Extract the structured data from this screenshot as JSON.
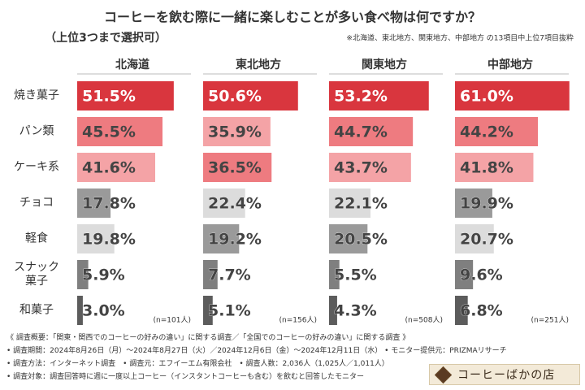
{
  "header": {
    "title": "コーヒーを飲む際に一緒に楽しむことが多い食べ物は何ですか？",
    "subtitle": "（上位3つまで選択可）",
    "note": "※北海道、東北地方、関東地方、中部地方 の13項目中上位7項目抜粋"
  },
  "chart_data": {
    "type": "bar",
    "orientation": "horizontal",
    "categories": [
      "焼き菓子",
      "パン類",
      "ケーキ系",
      "チョコ",
      "軽食",
      "スナック\n菓子",
      "和菓子"
    ],
    "xlim": [
      0,
      65
    ],
    "series": [
      {
        "name": "北海道",
        "note": "(n=101人)",
        "values": [
          51.5,
          45.5,
          41.6,
          17.8,
          19.8,
          5.9,
          3.0
        ],
        "value_labels": [
          "51.5%",
          "45.5%",
          "41.6%",
          "17.8%",
          "19.8%",
          "5.9%",
          "3.0%"
        ],
        "colors": [
          "#d9363e",
          "#ee7b80",
          "#f4a3a6",
          "#9a9a9a",
          "#dcdcdc",
          "#7f7f7f",
          "#5c5c5c"
        ]
      },
      {
        "name": "東北地方",
        "note": "(n=156人)",
        "values": [
          50.6,
          35.9,
          36.5,
          22.4,
          19.2,
          7.7,
          5.1
        ],
        "value_labels": [
          "50.6%",
          "35.9%",
          "36.5%",
          "22.4%",
          "19.2%",
          "7.7%",
          "5.1%"
        ],
        "colors": [
          "#d9363e",
          "#f4a3a6",
          "#ee7b80",
          "#dcdcdc",
          "#9a9a9a",
          "#7f7f7f",
          "#5c5c5c"
        ]
      },
      {
        "name": "関東地方",
        "note": "(n=508人)",
        "values": [
          53.2,
          44.7,
          43.7,
          22.1,
          20.5,
          5.5,
          4.3
        ],
        "value_labels": [
          "53.2%",
          "44.7%",
          "43.7%",
          "22.1%",
          "20.5%",
          "5.5%",
          "4.3%"
        ],
        "colors": [
          "#d9363e",
          "#ee7b80",
          "#f4a3a6",
          "#dcdcdc",
          "#9a9a9a",
          "#7f7f7f",
          "#5c5c5c"
        ]
      },
      {
        "name": "中部地方",
        "note": "(n=251人)",
        "values": [
          61.0,
          44.2,
          41.8,
          19.9,
          20.7,
          9.6,
          6.8
        ],
        "value_labels": [
          "61.0%",
          "44.2%",
          "41.8%",
          "19.9%",
          "20.7%",
          "9.6%",
          "6.8%"
        ],
        "colors": [
          "#d9363e",
          "#ee7b80",
          "#f4a3a6",
          "#9a9a9a",
          "#dcdcdc",
          "#7f7f7f",
          "#5c5c5c"
        ]
      }
    ]
  },
  "footer": {
    "lines": [
      "《 調査概要：「関東・関西でのコーヒーの好みの違い」に関する調査／「全国でのコーヒーの好みの違い」に関する調査 》",
      "• 調査期間：2024年8月26日（月）〜2024年8月27日（火）／2024年12月6日（金）〜2024年12月11日（水） • モニター提供元：PRIZMAリサーチ",
      "• 調査方法：インターネット調査　• 調査元：エフイーエム有限会社　• 調査人数：2,036人（1,025人／1,011人）",
      "• 調査対象：調査回答時に週に一度以上コーヒー（インスタントコーヒーも含む）を飲むと回答したモニター"
    ],
    "logo": "コーヒーばかの店"
  }
}
